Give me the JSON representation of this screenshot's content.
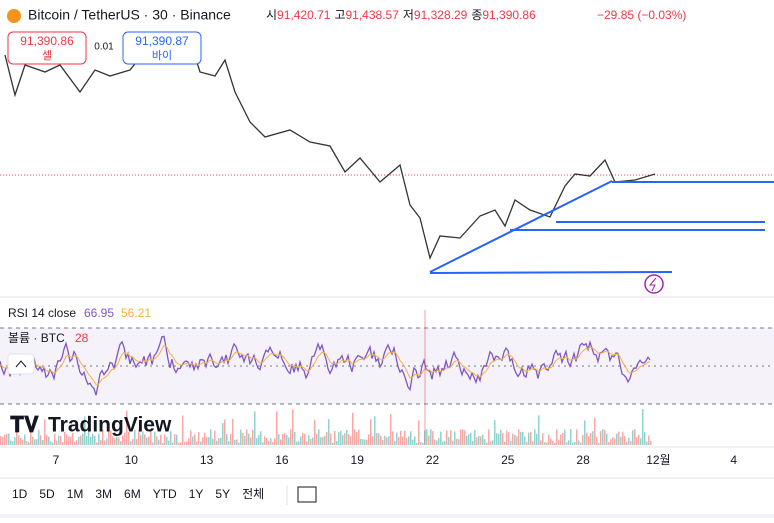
{
  "header": {
    "symbol": "Bitcoin / TetherUS · 30 · Binance",
    "ohlc": [
      {
        "label": "시",
        "value": "91,420.71"
      },
      {
        "label": "고",
        "value": "91,438.57"
      },
      {
        "label": "저",
        "value": "91,328.29"
      },
      {
        "label": "종",
        "value": "91,390.86"
      }
    ],
    "change": "−29.85 (−0.03%)"
  },
  "trade": {
    "sell_price": "91,390.86",
    "sell_label": "셀",
    "spread": "0.01",
    "buy_price": "91,390.87",
    "buy_label": "바이"
  },
  "rsi": {
    "label": "RSI 14 close",
    "value": "66.95",
    "ma": "56.21"
  },
  "volume": {
    "label": "볼륨 · BTC",
    "value": "28"
  },
  "logo": "TradingView",
  "x_axis": [
    "7",
    "10",
    "13",
    "16",
    "19",
    "22",
    "25",
    "28",
    "12월",
    "4"
  ],
  "timeframes": [
    "1D",
    "5D",
    "1M",
    "3M",
    "6M",
    "YTD",
    "1Y",
    "5Y",
    "전체"
  ]
}
